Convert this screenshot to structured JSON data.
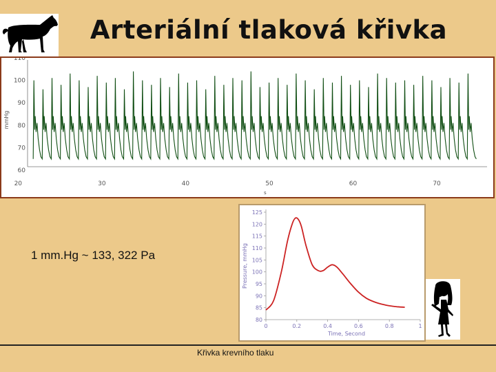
{
  "slide": {
    "title": "Arteriální tlaková křivka",
    "conversion": "1 mm.Hg ~ 133, 322 Pa",
    "caption": "Křivka krevního tlaku"
  },
  "icons": [
    "horse-silhouette-icon",
    "girl-silhouette-icon"
  ],
  "colors": {
    "background": "#ecc98a",
    "top_chart_border": "#8b3a1a",
    "recording_line": "#0f4d12",
    "pulse_curve": "#cc2222",
    "axis_text": "#555555",
    "bottom_axis_text": "#7b72b6"
  },
  "chart_data": [
    {
      "type": "line",
      "title": "",
      "xlabel": "s",
      "ylabel": "mmHg",
      "xlim": [
        18,
        76
      ],
      "ylim": [
        56,
        110
      ],
      "x_ticks": [
        20,
        30,
        40,
        50,
        60,
        70
      ],
      "y_ticks": [
        60,
        70,
        80,
        90,
        100,
        110
      ],
      "x_tick_labels": [
        "20",
        "30",
        "40",
        "50",
        "60",
        "70"
      ],
      "y_tick_labels": [
        "60",
        "70",
        "80",
        "90",
        "100",
        "110"
      ],
      "grid": false,
      "beats": {
        "start": 21.8,
        "end": 75.4,
        "period": 1.08,
        "systolic": 101,
        "systolic_peaks": [
          100,
          96,
          101,
          98,
          103,
          100,
          97,
          102,
          99,
          101,
          96,
          104,
          100,
          98,
          101,
          97,
          103,
          99,
          100,
          96,
          102,
          98,
          101,
          100,
          104,
          97,
          99,
          101,
          98,
          103,
          100,
          96,
          101,
          99,
          102,
          98,
          100,
          97,
          103,
          101,
          99,
          100,
          98,
          102,
          100,
          97,
          101,
          99,
          103,
          100
        ],
        "dicrotic": 80,
        "diastolic": 65
      }
    },
    {
      "type": "line",
      "title": "",
      "xlabel": "Time, Second",
      "ylabel": "Pressure, mmHg",
      "xlim": [
        0,
        1
      ],
      "ylim": [
        80,
        125
      ],
      "x_ticks": [
        0,
        0.2,
        0.4,
        0.6,
        0.8,
        1
      ],
      "y_ticks": [
        80,
        85,
        90,
        95,
        100,
        105,
        110,
        115,
        120,
        125
      ],
      "x_tick_labels": [
        "0",
        "0.2",
        "0.4",
        "0.6",
        "0.8",
        "1"
      ],
      "y_tick_labels": [
        "80",
        "85",
        "90",
        "95",
        "100",
        "105",
        "110",
        "115",
        "120",
        "125"
      ],
      "grid": false,
      "series": [
        {
          "x": [
            0.0,
            0.05,
            0.1,
            0.14,
            0.17,
            0.19,
            0.21,
            0.23,
            0.26,
            0.3,
            0.34,
            0.37,
            0.4,
            0.43,
            0.46,
            0.5,
            0.55,
            0.6,
            0.65,
            0.7,
            0.75,
            0.8,
            0.85,
            0.9
          ],
          "y": [
            84,
            88,
            100,
            113,
            120,
            122.5,
            122,
            119,
            111,
            103,
            100.5,
            100.5,
            102,
            103,
            102,
            99,
            95,
            91.5,
            89,
            87.5,
            86.5,
            85.8,
            85.4,
            85.2
          ]
        }
      ]
    }
  ]
}
